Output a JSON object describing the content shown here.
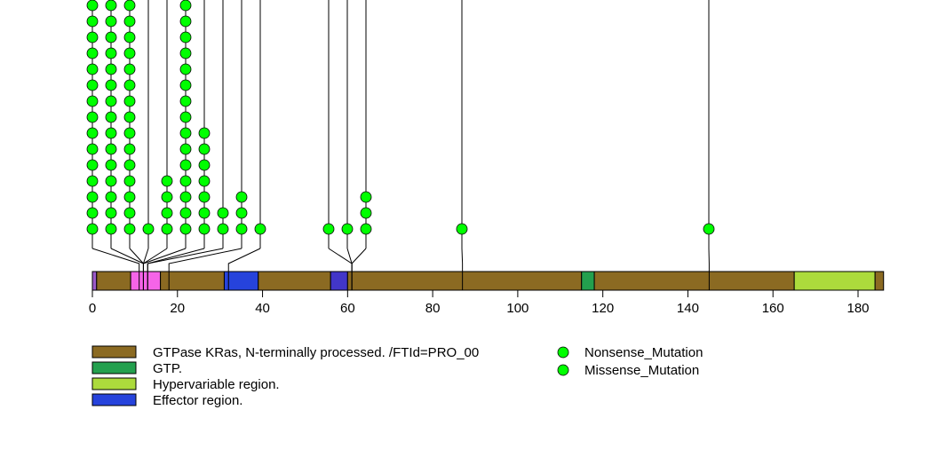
{
  "chart_data": {
    "type": "lollipop",
    "protein_length": 186,
    "xlim": [
      0,
      186
    ],
    "x_ticks": [
      0,
      20,
      40,
      60,
      80,
      100,
      120,
      140,
      160,
      180
    ],
    "domains": [
      {
        "start": 0,
        "end": 1,
        "color": "#9B59C8"
      },
      {
        "start": 1,
        "end": 9,
        "color": "#8B6A22"
      },
      {
        "start": 9,
        "end": 16,
        "color": "#F564E8"
      },
      {
        "start": 16,
        "end": 31,
        "color": "#8B6A22"
      },
      {
        "start": 31,
        "end": 39,
        "color": "#2643DC"
      },
      {
        "start": 39,
        "end": 56,
        "color": "#8B6A22"
      },
      {
        "start": 56,
        "end": 60,
        "color": "#4236C8"
      },
      {
        "start": 60,
        "end": 115,
        "color": "#8B6A22"
      },
      {
        "start": 115,
        "end": 118,
        "color": "#23A04E"
      },
      {
        "start": 118,
        "end": 165,
        "color": "#8B6A22"
      },
      {
        "start": 165,
        "end": 184,
        "color": "#ACDB3C"
      },
      {
        "start": 184,
        "end": 186,
        "color": "#8B6A22"
      }
    ],
    "mutation_groups": [
      {
        "position": 11,
        "count": 15,
        "type": "Missense_Mutation"
      },
      {
        "position": 12,
        "count": 15,
        "type": "Missense_Mutation"
      },
      {
        "position": 12,
        "count": 15,
        "type": "Missense_Mutation"
      },
      {
        "position": 12,
        "count": 1,
        "type": "Missense_Mutation"
      },
      {
        "position": 12,
        "count": 4,
        "type": "Missense_Mutation"
      },
      {
        "position": 12,
        "count": 15,
        "type": "Missense_Mutation"
      },
      {
        "position": 13,
        "count": 7,
        "type": "Missense_Mutation"
      },
      {
        "position": 13,
        "count": 2,
        "type": "Missense_Mutation"
      },
      {
        "position": 18,
        "count": 3,
        "type": "Missense_Mutation"
      },
      {
        "position": 32,
        "count": 1,
        "type": "Missense_Mutation"
      },
      {
        "position": 61,
        "count": 1,
        "type": "Missense_Mutation"
      },
      {
        "position": 61,
        "count": 1,
        "type": "Missense_Mutation"
      },
      {
        "position": 61,
        "count": 3,
        "type": "Missense_Mutation"
      },
      {
        "position": 87,
        "count": 1,
        "type": "Missense_Mutation"
      },
      {
        "position": 145,
        "count": 1,
        "type": "Missense_Mutation"
      }
    ],
    "legend": {
      "domains": [
        {
          "label": "GTPase KRas, N-terminally processed. /FTId=PRO_00",
          "color": "#8B6A22"
        },
        {
          "label": "GTP.",
          "color": "#23A04E"
        },
        {
          "label": "Hypervariable region.",
          "color": "#ACDB3C"
        },
        {
          "label": "Effector region.",
          "color": "#2643DC"
        }
      ],
      "mutations": [
        {
          "label": "Nonsense_Mutation",
          "color": "#00FF00"
        },
        {
          "label": "Missense_Mutation",
          "color": "#00FF00"
        }
      ]
    }
  }
}
